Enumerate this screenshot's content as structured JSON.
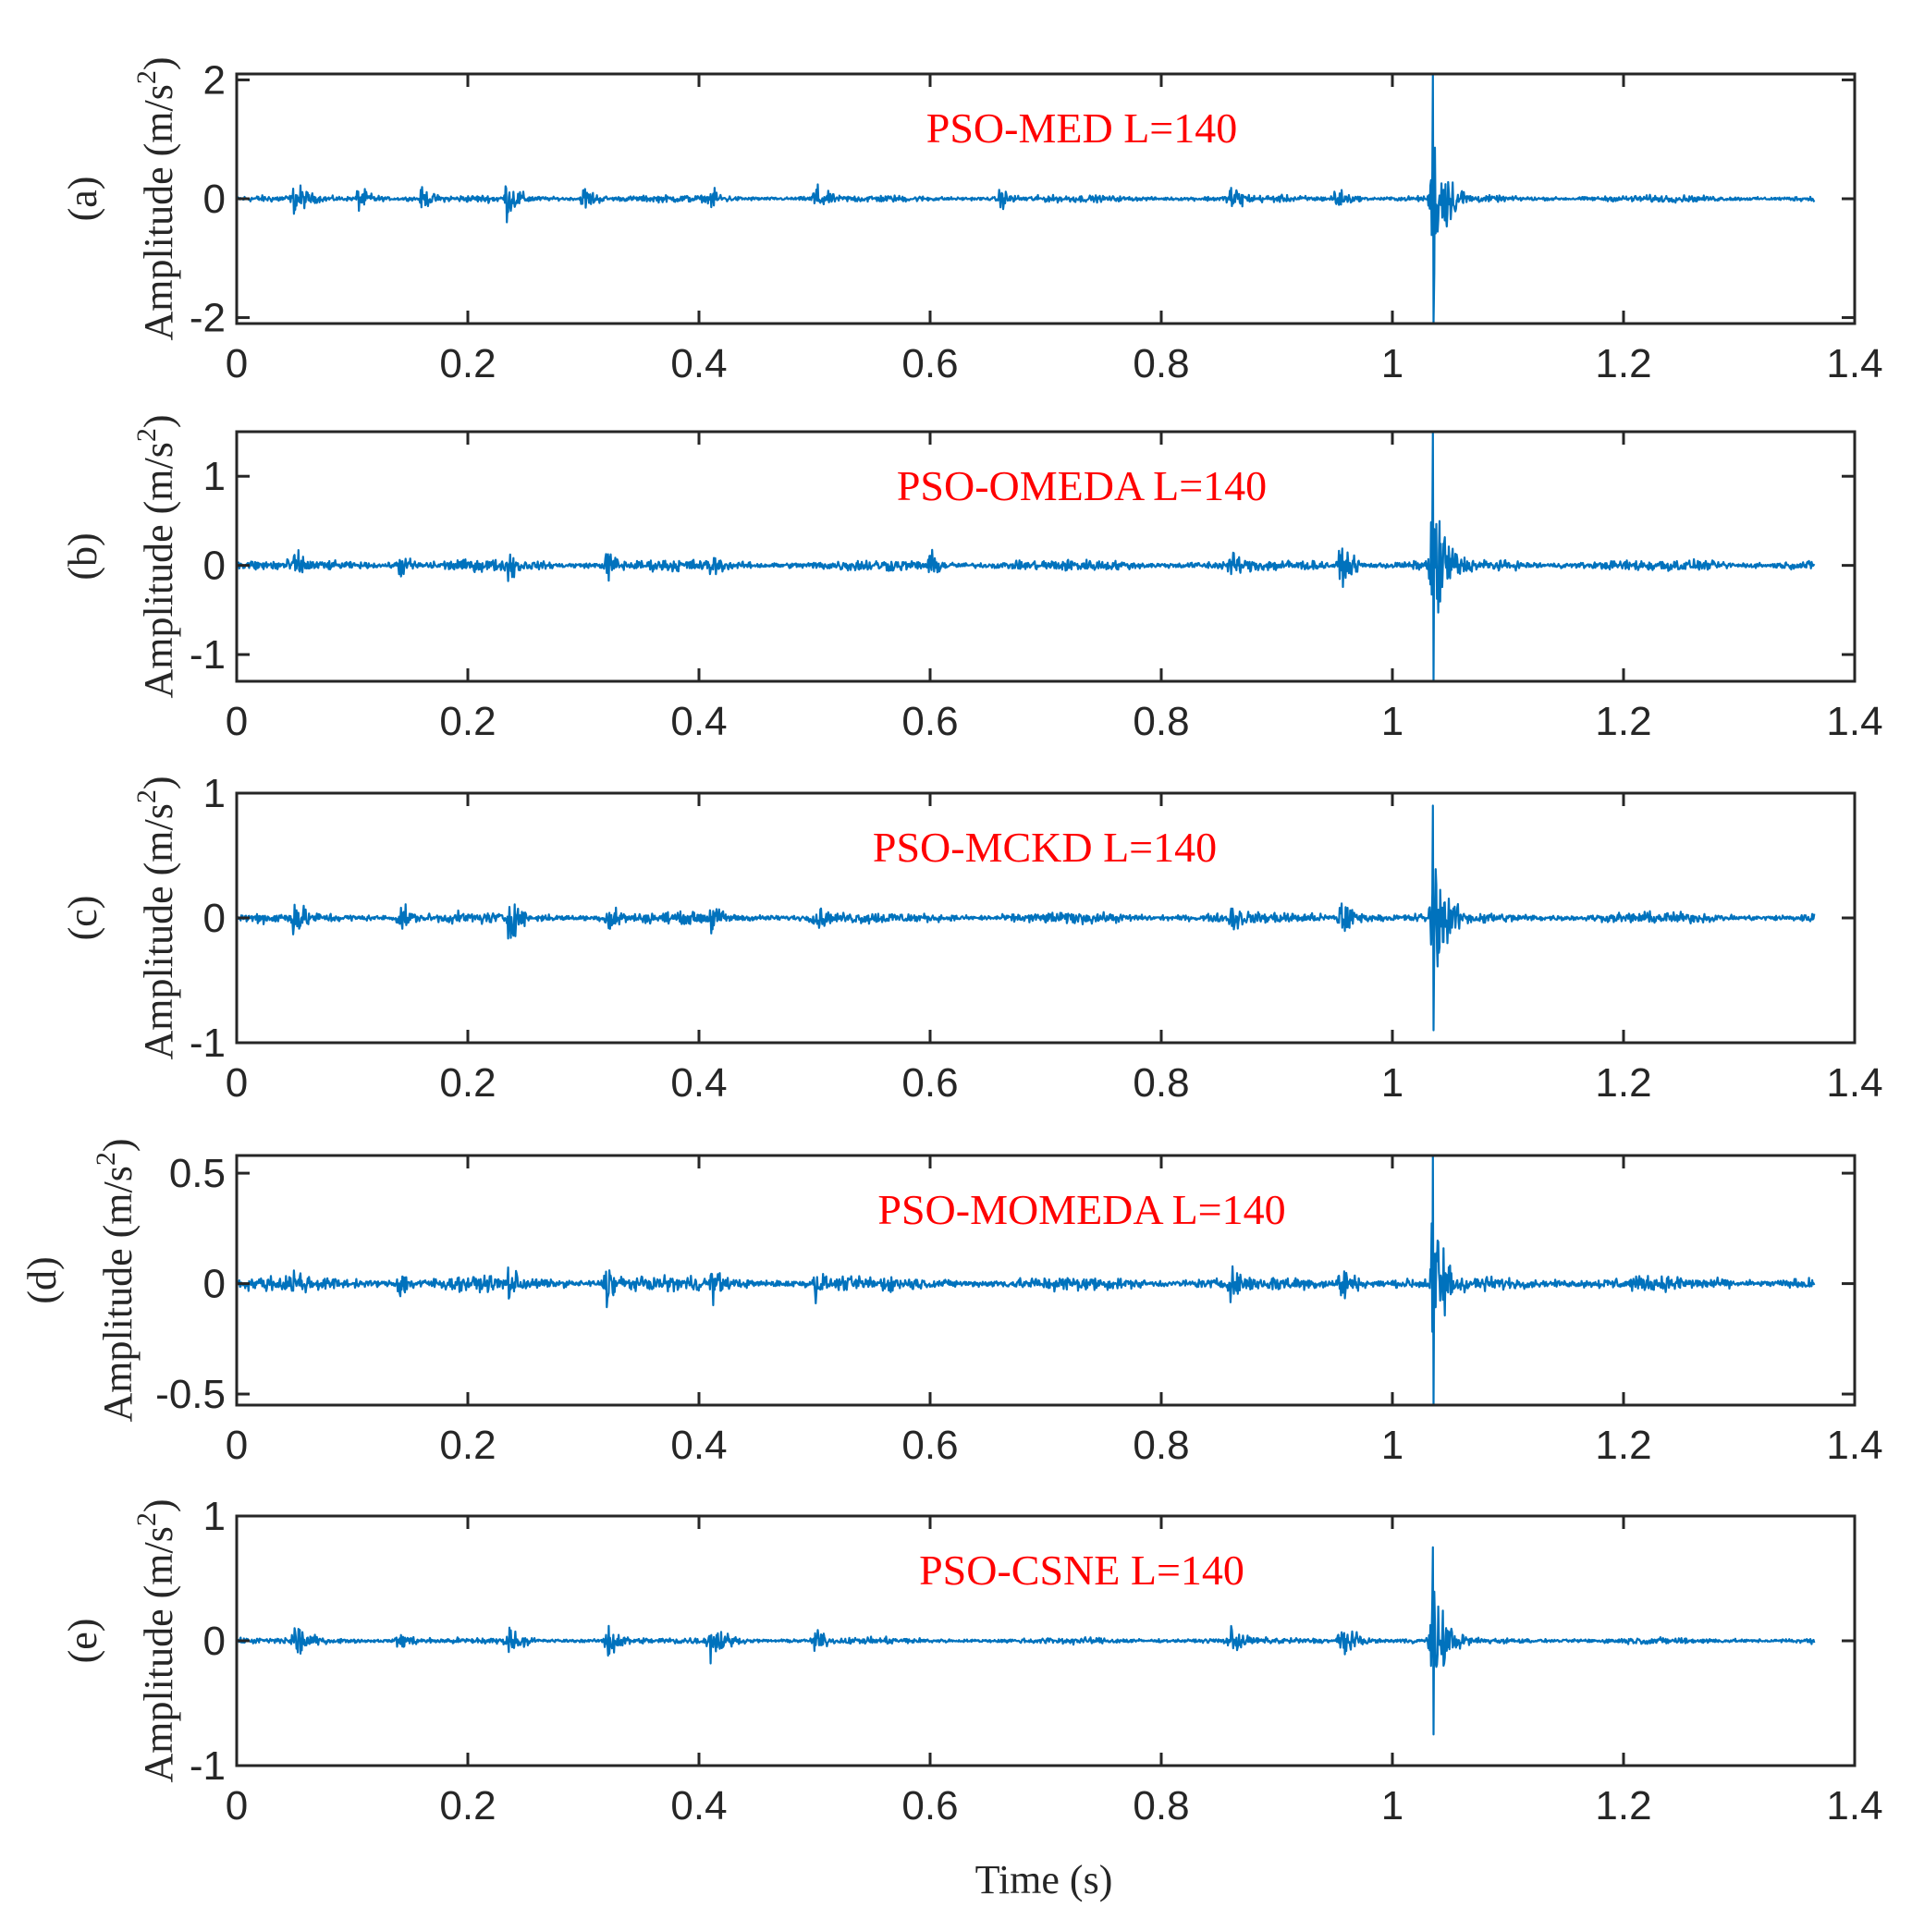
{
  "figure": {
    "xlabel": "Time (s)"
  },
  "chart_data": [
    {
      "type": "line",
      "panel_label": "(a)",
      "title": "PSO-MED L=140",
      "ylabel": "Amplitude (m/s",
      "ylabel_sup": "2",
      "ylabel_close": ")",
      "xlim": [
        0,
        1.4
      ],
      "ylim": [
        -2.1,
        2.1
      ],
      "xticks": [
        0,
        0.2,
        0.4,
        0.6,
        0.8,
        1,
        1.2,
        1.4
      ],
      "xtick_labels": [
        "0",
        "0.2",
        "0.4",
        "0.6",
        "0.8",
        "1",
        "1.2",
        "1.4"
      ],
      "yticks": [
        -2,
        0,
        2
      ],
      "ytick_labels": [
        "-2",
        "0",
        "2"
      ],
      "color": "#0072bd",
      "duration": 1.365,
      "noise_amp": 0.09,
      "bursts": [
        {
          "t": 0.05,
          "amp": 0.5
        },
        {
          "t": 0.105,
          "amp": 0.35
        },
        {
          "t": 0.16,
          "amp": 0.3
        },
        {
          "t": 0.233,
          "amp": 0.55
        },
        {
          "t": 0.3,
          "amp": 0.35
        },
        {
          "t": 0.41,
          "amp": 0.3
        },
        {
          "t": 0.5,
          "amp": 0.45
        },
        {
          "t": 0.66,
          "amp": 0.3
        },
        {
          "t": 0.86,
          "amp": 0.45
        },
        {
          "t": 0.95,
          "amp": 0.35
        },
        {
          "t": 1.035,
          "amp": 2.1
        }
      ]
    },
    {
      "type": "line",
      "panel_label": "(b)",
      "title": "PSO-OMEDA L=140",
      "ylabel": "Amplitude (m/s",
      "ylabel_sup": "2",
      "ylabel_close": ")",
      "xlim": [
        0,
        1.4
      ],
      "ylim": [
        -1.3,
        1.5
      ],
      "xticks": [
        0,
        0.2,
        0.4,
        0.6,
        0.8,
        1,
        1.2,
        1.4
      ],
      "xtick_labels": [
        "0",
        "0.2",
        "0.4",
        "0.6",
        "0.8",
        "1",
        "1.2",
        "1.4"
      ],
      "yticks": [
        -1,
        0,
        1
      ],
      "ytick_labels": [
        "-1",
        "0",
        "1"
      ],
      "color": "#0072bd",
      "duration": 1.365,
      "noise_amp": 0.1,
      "bursts": [
        {
          "t": 0.05,
          "amp": 0.3
        },
        {
          "t": 0.14,
          "amp": 0.25
        },
        {
          "t": 0.235,
          "amp": 0.3
        },
        {
          "t": 0.32,
          "amp": 0.3
        },
        {
          "t": 0.41,
          "amp": 0.25
        },
        {
          "t": 0.6,
          "amp": 0.25
        },
        {
          "t": 0.86,
          "amp": 0.3
        },
        {
          "t": 0.955,
          "amp": 0.35
        },
        {
          "t": 1.035,
          "amp": 1.5
        }
      ]
    },
    {
      "type": "line",
      "panel_label": "(c)",
      "title": "PSO-MCKD L=140",
      "ylabel": "Amplitude (m/s",
      "ylabel_sup": "2",
      "ylabel_close": ")",
      "xlim": [
        0,
        1.4
      ],
      "ylim": [
        -1,
        1
      ],
      "xticks": [
        0,
        0.2,
        0.4,
        0.6,
        0.8,
        1,
        1.2,
        1.4
      ],
      "xtick_labels": [
        "0",
        "0.2",
        "0.4",
        "0.6",
        "0.8",
        "1",
        "1.2",
        "1.4"
      ],
      "yticks": [
        -1,
        0,
        1
      ],
      "ytick_labels": [
        "-1",
        "0",
        "1"
      ],
      "color": "#0072bd",
      "duration": 1.365,
      "noise_amp": 0.07,
      "bursts": [
        {
          "t": 0.05,
          "amp": 0.28
        },
        {
          "t": 0.14,
          "amp": 0.2
        },
        {
          "t": 0.235,
          "amp": 0.3
        },
        {
          "t": 0.32,
          "amp": 0.25
        },
        {
          "t": 0.41,
          "amp": 0.2
        },
        {
          "t": 0.5,
          "amp": 0.2
        },
        {
          "t": 0.86,
          "amp": 0.25
        },
        {
          "t": 0.955,
          "amp": 0.3
        },
        {
          "t": 1.035,
          "amp": 0.9
        }
      ]
    },
    {
      "type": "line",
      "panel_label": "(d)",
      "title": "PSO-MOMEDA L=140",
      "ylabel": "Amplitude (m/s",
      "ylabel_sup": "2",
      "ylabel_close": ")",
      "xlim": [
        0,
        1.4
      ],
      "ylim": [
        -0.55,
        0.58
      ],
      "xticks": [
        0,
        0.2,
        0.4,
        0.6,
        0.8,
        1,
        1.2,
        1.4
      ],
      "xtick_labels": [
        "0",
        "0.2",
        "0.4",
        "0.6",
        "0.8",
        "1",
        "1.2",
        "1.4"
      ],
      "yticks": [
        -0.5,
        0,
        0.5
      ],
      "ytick_labels": [
        "-0.5",
        "0",
        "0.5"
      ],
      "color": "#0072bd",
      "duration": 1.365,
      "noise_amp": 0.05,
      "bursts": [
        {
          "t": 0.05,
          "amp": 0.15
        },
        {
          "t": 0.14,
          "amp": 0.12
        },
        {
          "t": 0.235,
          "amp": 0.15
        },
        {
          "t": 0.32,
          "amp": 0.18
        },
        {
          "t": 0.41,
          "amp": 0.14
        },
        {
          "t": 0.5,
          "amp": 0.12
        },
        {
          "t": 0.86,
          "amp": 0.14
        },
        {
          "t": 0.955,
          "amp": 0.16
        },
        {
          "t": 1.035,
          "amp": 0.58
        }
      ]
    },
    {
      "type": "line",
      "panel_label": "(e)",
      "title": "PSO-CSNE L=140",
      "ylabel": "Amplitude (m/s",
      "ylabel_sup": "2",
      "ylabel_close": ")",
      "xlim": [
        0,
        1.4
      ],
      "ylim": [
        -1,
        1
      ],
      "xticks": [
        0,
        0.2,
        0.4,
        0.6,
        0.8,
        1,
        1.2,
        1.4
      ],
      "xtick_labels": [
        "0",
        "0.2",
        "0.4",
        "0.6",
        "0.8",
        "1",
        "1.2",
        "1.4"
      ],
      "yticks": [
        -1,
        0,
        1
      ],
      "ytick_labels": [
        "-1",
        "0",
        "1"
      ],
      "color": "#0072bd",
      "duration": 1.365,
      "noise_amp": 0.04,
      "bursts": [
        {
          "t": 0.05,
          "amp": 0.28
        },
        {
          "t": 0.14,
          "amp": 0.15
        },
        {
          "t": 0.235,
          "amp": 0.2
        },
        {
          "t": 0.32,
          "amp": 0.25
        },
        {
          "t": 0.41,
          "amp": 0.3
        },
        {
          "t": 0.5,
          "amp": 0.15
        },
        {
          "t": 0.86,
          "amp": 0.2
        },
        {
          "t": 0.955,
          "amp": 0.28
        },
        {
          "t": 1.035,
          "amp": 0.75
        }
      ]
    }
  ]
}
